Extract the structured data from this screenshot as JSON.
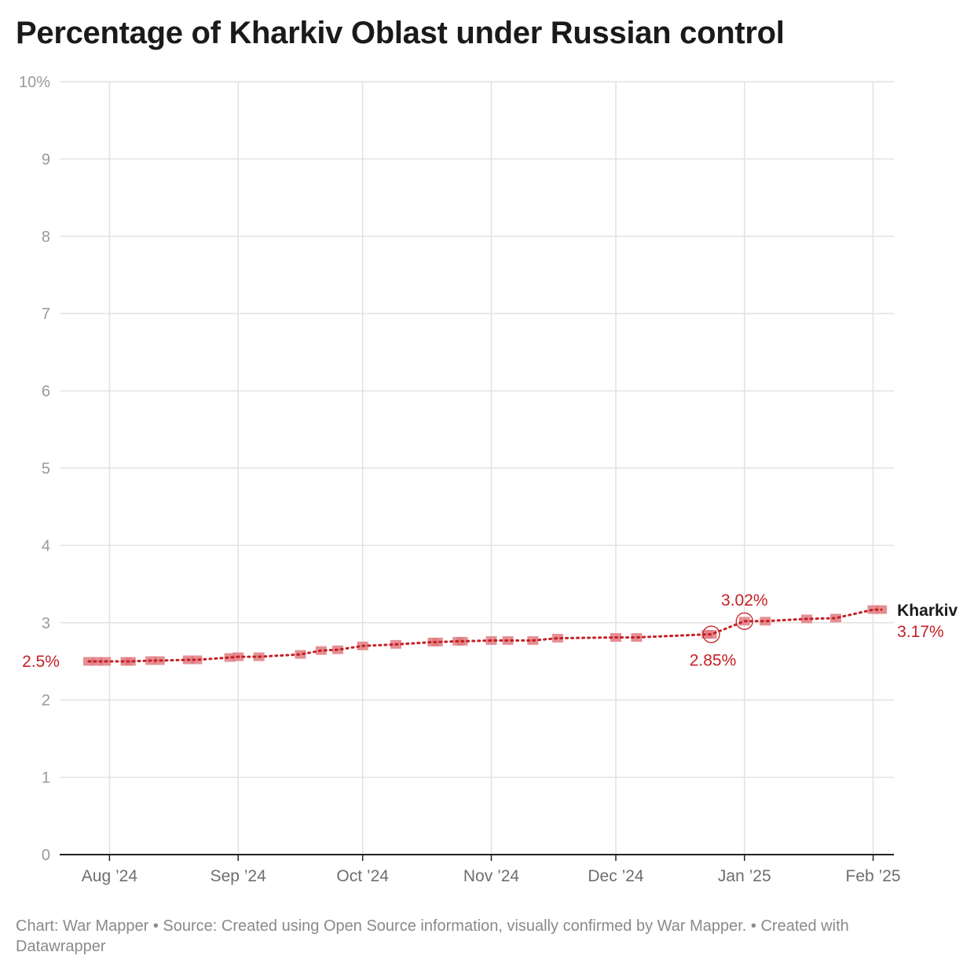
{
  "title": "Percentage of Kharkiv Oblast under Russian control",
  "footer": "Chart: War Mapper • Source: Created using Open Source information, visually confirmed by War Mapper. • Created with Datawrapper",
  "colors": {
    "line": "#c42026",
    "marker": "#e07b80",
    "grid": "#e2e2e2",
    "axis": "#222222",
    "tick": "#9a9a9a",
    "footer": "#8a8a8a"
  },
  "chart_data": {
    "type": "line",
    "title": "Percentage of Kharkiv Oblast under Russian control",
    "xlabel": "",
    "ylabel": "",
    "ylim": [
      0,
      10
    ],
    "xlim": [
      "2024-07-20",
      "2025-02-06"
    ],
    "y_ticks": [
      "0",
      "1",
      "2",
      "3",
      "4",
      "5",
      "6",
      "7",
      "8",
      "9",
      "10%"
    ],
    "y_tick_values": [
      0,
      1,
      2,
      3,
      4,
      5,
      6,
      7,
      8,
      9,
      10
    ],
    "x_ticks": [
      {
        "date": "2024-08-01",
        "label": "Aug ’24"
      },
      {
        "date": "2024-09-01",
        "label": "Sep ’24"
      },
      {
        "date": "2024-10-01",
        "label": "Oct ’24"
      },
      {
        "date": "2024-11-01",
        "label": "Nov ’24"
      },
      {
        "date": "2024-12-01",
        "label": "Dec ’24"
      },
      {
        "date": "2025-01-01",
        "label": "Jan ’25"
      },
      {
        "date": "2025-02-01",
        "label": "Feb ’25"
      }
    ],
    "grid": true,
    "series": [
      {
        "name": "Kharkiv",
        "end_label": "3.17%",
        "points": [
          [
            "2024-07-27",
            2.5
          ],
          [
            "2024-07-29",
            2.5
          ],
          [
            "2024-07-31",
            2.5
          ],
          [
            "2024-08-05",
            2.5
          ],
          [
            "2024-08-06",
            2.5
          ],
          [
            "2024-08-11",
            2.51
          ],
          [
            "2024-08-13",
            2.51
          ],
          [
            "2024-08-20",
            2.52
          ],
          [
            "2024-08-22",
            2.52
          ],
          [
            "2024-08-30",
            2.55
          ],
          [
            "2024-09-01",
            2.56
          ],
          [
            "2024-09-06",
            2.56
          ],
          [
            "2024-09-16",
            2.59
          ],
          [
            "2024-09-21",
            2.64
          ],
          [
            "2024-09-25",
            2.65
          ],
          [
            "2024-10-01",
            2.7
          ],
          [
            "2024-10-09",
            2.72
          ],
          [
            "2024-10-18",
            2.75
          ],
          [
            "2024-10-19",
            2.75
          ],
          [
            "2024-10-24",
            2.76
          ],
          [
            "2024-10-25",
            2.76
          ],
          [
            "2024-11-01",
            2.77
          ],
          [
            "2024-11-05",
            2.77
          ],
          [
            "2024-11-11",
            2.77
          ],
          [
            "2024-11-17",
            2.8
          ],
          [
            "2024-12-01",
            2.81
          ],
          [
            "2024-12-06",
            2.81
          ],
          [
            "2024-12-23",
            2.85
          ],
          [
            "2024-12-24",
            2.85
          ],
          [
            "2025-01-01",
            3.02
          ],
          [
            "2025-01-06",
            3.02
          ],
          [
            "2025-01-16",
            3.05
          ],
          [
            "2025-01-23",
            3.06
          ],
          [
            "2025-02-01",
            3.17
          ],
          [
            "2025-02-03",
            3.17
          ]
        ]
      }
    ],
    "annotations": [
      {
        "text": "2.5%",
        "date": "2024-07-27",
        "value": 2.5
      },
      {
        "text": "2.85%",
        "date": "2024-12-24",
        "value": 2.85
      },
      {
        "text": "3.02%",
        "date": "2025-01-01",
        "value": 3.02
      }
    ]
  }
}
